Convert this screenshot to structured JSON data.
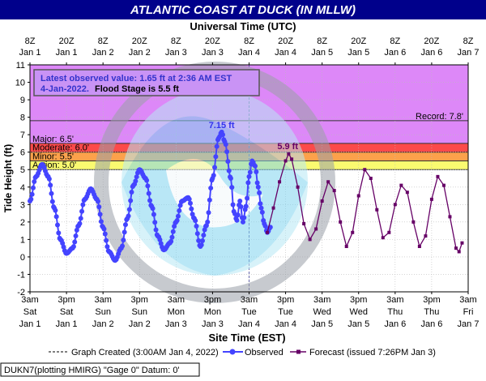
{
  "title": "ATLANTIC COAST AT DUCK (IN MLLW)",
  "top_axis_title": "Universal Time (UTC)",
  "bottom_axis_title": "Site Time (EST)",
  "y_axis_title": "Tide Height (ft)",
  "info_box": {
    "line1": "Latest observed value: 1.65 ft at 2:36 AM EST",
    "line2_date": "4-Jan-2022.",
    "line2_stage": "Flood Stage is 5.5 ft"
  },
  "bands": [
    {
      "name": "Record",
      "label": "Record: 7.8'",
      "from": 7.8,
      "to": 11,
      "color": "#dd88f8"
    },
    {
      "name": "Major",
      "label": "Major: 6.5'",
      "from": 6.5,
      "to": 7.8,
      "color": "#dd88f8"
    },
    {
      "name": "Moderate",
      "label": "Moderate: 6.0'",
      "from": 6.0,
      "to": 6.5,
      "color": "#fc4a4a"
    },
    {
      "name": "Minor",
      "label": "Minor: 5.5'",
      "from": 5.5,
      "to": 6.0,
      "color": "#fca14b"
    },
    {
      "name": "Action",
      "label": "Action: 5.0'",
      "from": 5.0,
      "to": 5.5,
      "color": "#fafa70"
    }
  ],
  "annotations": {
    "obs_peak": "7.15 ft",
    "fcst_peak": "5.9 ft"
  },
  "legend": {
    "created": "Graph Created (3:00AM Jan 4, 2022)",
    "observed": "Observed",
    "forecast": "Forecast (issued 7:26PM Jan 3)"
  },
  "footer": "DUKN7(plotting HMIRG) \"Gage 0\" Datum: 0'",
  "colors": {
    "observed": "#4444ff",
    "forecast": "#660066",
    "title_bg": "#00008b",
    "plot_bg": "#ffffff"
  },
  "chart_data": {
    "type": "line",
    "ylim": [
      -2,
      11
    ],
    "yticks": [
      -2,
      -1,
      0,
      1,
      2,
      3,
      4,
      5,
      6,
      7,
      8,
      9,
      10,
      11
    ],
    "xlim_hours_est": [
      0,
      144
    ],
    "top_ticks": [
      {
        "t": "8Z",
        "d": "Jan 1"
      },
      {
        "t": "20Z",
        "d": "Jan 1"
      },
      {
        "t": "8Z",
        "d": "Jan 2"
      },
      {
        "t": "20Z",
        "d": "Jan 2"
      },
      {
        "t": "8Z",
        "d": "Jan 3"
      },
      {
        "t": "20Z",
        "d": "Jan 3"
      },
      {
        "t": "8Z",
        "d": "Jan 4"
      },
      {
        "t": "20Z",
        "d": "Jan 4"
      },
      {
        "t": "8Z",
        "d": "Jan 5"
      },
      {
        "t": "20Z",
        "d": "Jan 5"
      },
      {
        "t": "8Z",
        "d": "Jan 6"
      },
      {
        "t": "20Z",
        "d": "Jan 6"
      },
      {
        "t": "8Z",
        "d": "Jan 7"
      }
    ],
    "bottom_ticks": [
      {
        "t": "3am",
        "w": "Sat",
        "d": "Jan 1"
      },
      {
        "t": "3pm",
        "w": "Sat",
        "d": "Jan 1"
      },
      {
        "t": "3am",
        "w": "Sun",
        "d": "Jan 2"
      },
      {
        "t": "3pm",
        "w": "Sun",
        "d": "Jan 2"
      },
      {
        "t": "3am",
        "w": "Mon",
        "d": "Jan 3"
      },
      {
        "t": "3pm",
        "w": "Mon",
        "d": "Jan 3"
      },
      {
        "t": "3am",
        "w": "Tue",
        "d": "Jan 4"
      },
      {
        "t": "3pm",
        "w": "Tue",
        "d": "Jan 4"
      },
      {
        "t": "3am",
        "w": "Wed",
        "d": "Jan 5"
      },
      {
        "t": "3pm",
        "w": "Wed",
        "d": "Jan 5"
      },
      {
        "t": "3am",
        "w": "Thu",
        "d": "Jan 6"
      },
      {
        "t": "3pm",
        "w": "Thu",
        "d": "Jan 6"
      },
      {
        "t": "3am",
        "w": "Fri",
        "d": "Jan 7"
      }
    ],
    "graph_created_hour": 72,
    "series": [
      {
        "name": "Observed",
        "points": [
          [
            0,
            3.2
          ],
          [
            2,
            4.6
          ],
          [
            4,
            5.3
          ],
          [
            6,
            4.6
          ],
          [
            8,
            2.8
          ],
          [
            10,
            1.0
          ],
          [
            12,
            0.2
          ],
          [
            14,
            0.5
          ],
          [
            16,
            1.8
          ],
          [
            18,
            3.3
          ],
          [
            20,
            3.9
          ],
          [
            22,
            3.3
          ],
          [
            24,
            1.7
          ],
          [
            26,
            0.3
          ],
          [
            28,
            -0.2
          ],
          [
            30,
            0.5
          ],
          [
            32,
            2.2
          ],
          [
            34,
            4.1
          ],
          [
            36,
            5.0
          ],
          [
            38,
            4.5
          ],
          [
            40,
            2.9
          ],
          [
            42,
            1.2
          ],
          [
            44,
            0.4
          ],
          [
            46,
            0.8
          ],
          [
            48,
            2.0
          ],
          [
            50,
            3.2
          ],
          [
            52,
            3.4
          ],
          [
            54,
            2.2
          ],
          [
            56,
            0.6
          ],
          [
            58,
            1.8
          ],
          [
            60,
            4.5
          ],
          [
            62,
            6.8
          ],
          [
            63,
            7.15
          ],
          [
            64,
            6.6
          ],
          [
            66,
            4.5
          ],
          [
            67,
            2.6
          ],
          [
            68,
            2.1
          ],
          [
            69,
            3.2
          ],
          [
            70,
            2.0
          ],
          [
            71,
            2.9
          ],
          [
            72,
            4.6
          ],
          [
            73,
            5.5
          ],
          [
            74,
            5.2
          ],
          [
            75,
            4.0
          ],
          [
            76,
            2.8
          ],
          [
            77,
            1.9
          ],
          [
            78,
            1.4
          ],
          [
            79,
            1.7
          ]
        ]
      },
      {
        "name": "Forecast",
        "points": [
          [
            78,
            1.4
          ],
          [
            80,
            2.8
          ],
          [
            82,
            4.3
          ],
          [
            84,
            5.5
          ],
          [
            85,
            5.9
          ],
          [
            86,
            5.6
          ],
          [
            88,
            4.0
          ],
          [
            90,
            1.9
          ],
          [
            92,
            1.0
          ],
          [
            94,
            1.6
          ],
          [
            96,
            3.2
          ],
          [
            98,
            4.3
          ],
          [
            100,
            3.8
          ],
          [
            102,
            2.0
          ],
          [
            104,
            0.6
          ],
          [
            106,
            1.4
          ],
          [
            108,
            3.5
          ],
          [
            110,
            5.0
          ],
          [
            112,
            4.5
          ],
          [
            114,
            2.7
          ],
          [
            116,
            1.1
          ],
          [
            118,
            1.4
          ],
          [
            120,
            3.0
          ],
          [
            122,
            4.1
          ],
          [
            124,
            3.7
          ],
          [
            126,
            2.0
          ],
          [
            128,
            0.6
          ],
          [
            130,
            1.2
          ],
          [
            132,
            3.3
          ],
          [
            134,
            4.6
          ],
          [
            136,
            4.1
          ],
          [
            138,
            2.3
          ],
          [
            140,
            0.5
          ],
          [
            141,
            0.3
          ],
          [
            142,
            0.8
          ]
        ]
      }
    ]
  }
}
